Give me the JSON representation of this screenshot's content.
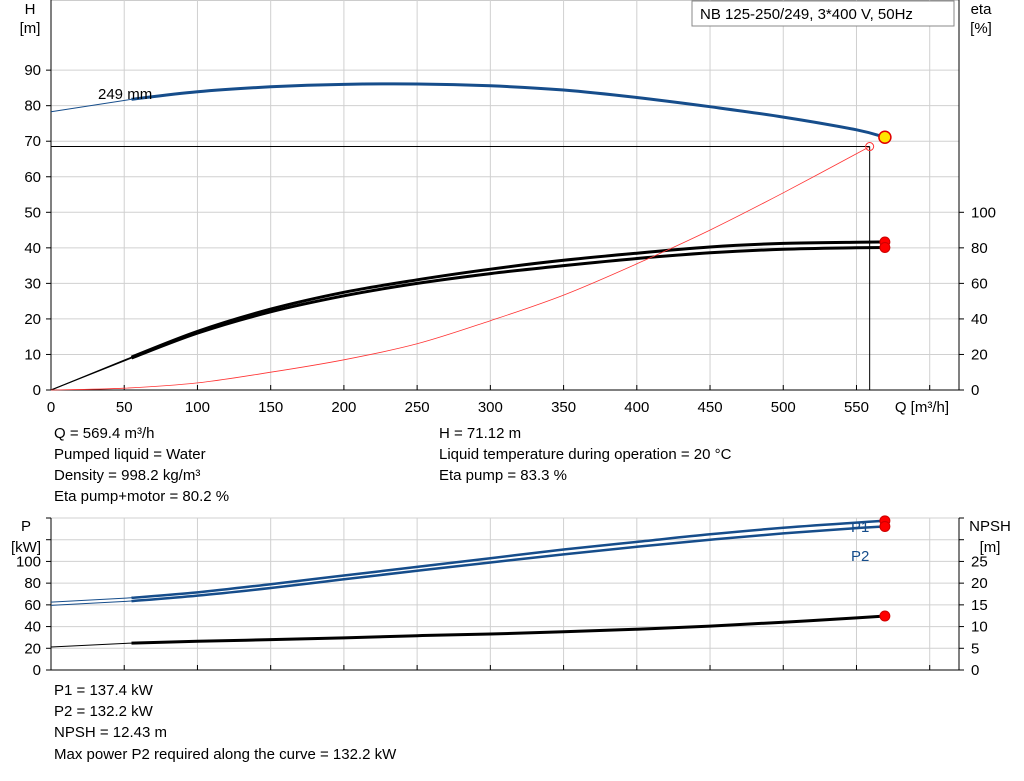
{
  "chart_data": [
    {
      "type": "line",
      "title": "NB 125-250/249, 3*400 V, 50Hz",
      "xlabel": "Q [m³/h]",
      "ylabel_left": [
        "H",
        "[m]"
      ],
      "ylabel_right": [
        "eta",
        "[%]"
      ],
      "xlim": [
        0,
        620
      ],
      "xticks": [
        0,
        50,
        100,
        150,
        200,
        250,
        300,
        350,
        400,
        450,
        500,
        550
      ],
      "ylim_left": [
        0,
        100
      ],
      "yticks_left": [
        0,
        10,
        20,
        30,
        40,
        50,
        60,
        70,
        80,
        90
      ],
      "ylim_right": [
        0,
        200
      ],
      "yticks_right": [
        0,
        20,
        40,
        60,
        80,
        100
      ],
      "grid": true,
      "annotations": [
        {
          "text": "249 mm",
          "x": 108,
          "y": 82
        }
      ],
      "series": [
        {
          "axis": "left",
          "role": "head",
          "color": "#164d8b",
          "extension_from": 0,
          "x": [
            55,
            100,
            150,
            200,
            250,
            300,
            350,
            400,
            450,
            500,
            550,
            569.4
          ],
          "y": [
            81.8,
            83.9,
            85.3,
            86.0,
            86.1,
            85.6,
            84.4,
            82.3,
            79.7,
            76.8,
            73.2,
            71.12
          ]
        },
        {
          "axis": "right",
          "role": "eta pump",
          "color": "#000000",
          "extension_from": 0,
          "x": [
            55,
            100,
            150,
            200,
            250,
            300,
            350,
            400,
            450,
            500,
            550,
            569.4
          ],
          "y": [
            18.5,
            33,
            45.5,
            55,
            62,
            68,
            73,
            77,
            80.5,
            82.5,
            83.2,
            83.3
          ]
        },
        {
          "axis": "right",
          "role": "eta pump+motor",
          "color": "#000000",
          "extension_from": 0,
          "x": [
            55,
            100,
            150,
            200,
            250,
            300,
            350,
            400,
            450,
            500,
            550,
            569.4
          ],
          "y": [
            18,
            32,
            44,
            53,
            60,
            65.5,
            70,
            74,
            77.2,
            79.2,
            80,
            80.2
          ]
        },
        {
          "axis": "left",
          "role": "system curve",
          "color": "#ff3333",
          "x": [
            0,
            50,
            100,
            150,
            200,
            250,
            300,
            350,
            400,
            450,
            500,
            559
          ],
          "y": [
            0,
            0.5,
            2.0,
            5.0,
            8.5,
            13.0,
            19.5,
            26.7,
            35.5,
            45.0,
            55.5,
            68.5
          ]
        }
      ],
      "operating_point": {
        "x": 569.4,
        "y": 71.12
      },
      "system_point": {
        "x": 559,
        "y": 68.5
      },
      "eta_points": [
        83.3,
        80.2
      ]
    },
    {
      "type": "line",
      "ylabel_left": [
        "P",
        "[kW]"
      ],
      "ylabel_right": [
        "NPSH",
        "[m]"
      ],
      "xlim": [
        0,
        620
      ],
      "ylim_left": [
        0,
        140
      ],
      "yticks_left": [
        0,
        20,
        40,
        60,
        80,
        100
      ],
      "ylim_right": [
        0,
        35
      ],
      "yticks_right": [
        0,
        5,
        10,
        15,
        20,
        25
      ],
      "grid": true,
      "series": [
        {
          "name": "P1",
          "axis": "left",
          "color": "#164d8b",
          "extension_from": 0,
          "x": [
            55,
            100,
            150,
            200,
            250,
            300,
            350,
            400,
            450,
            500,
            550,
            569.4
          ],
          "y": [
            66.5,
            71.5,
            79,
            87,
            95,
            103,
            111,
            118,
            125,
            131,
            135.8,
            137.4
          ]
        },
        {
          "name": "P2",
          "axis": "left",
          "color": "#164d8b",
          "extension_from": 0,
          "x": [
            55,
            100,
            150,
            200,
            250,
            300,
            350,
            400,
            450,
            500,
            550,
            569.4
          ],
          "y": [
            63.5,
            68.5,
            75.5,
            83.5,
            91.5,
            99,
            106.5,
            113.5,
            120,
            125.8,
            130.7,
            132.2
          ]
        },
        {
          "name": "NPSH",
          "axis": "right",
          "color": "#000000",
          "extension_from": 0,
          "x": [
            55,
            100,
            150,
            200,
            250,
            300,
            350,
            400,
            450,
            500,
            550,
            569.4
          ],
          "y": [
            6.2,
            6.6,
            7.0,
            7.4,
            7.9,
            8.3,
            8.8,
            9.4,
            10.1,
            11.0,
            12.0,
            12.43
          ]
        }
      ],
      "end_values_left": [
        137.4,
        132.2
      ],
      "end_value_right": 12.43
    }
  ],
  "info": {
    "q": "Q = 569.4 m³/h",
    "liquid": "Pumped liquid = Water",
    "density": "Density = 998.2 kg/m³",
    "eta_pm": "Eta pump+motor = 80.2 %",
    "h": "H = 71.12 m",
    "temp": "Liquid temperature during operation = 20 °C",
    "eta_pump": "Eta pump = 83.3 %",
    "p1": "P1 = 137.4 kW",
    "p2": "P2 = 132.2 kW",
    "npsh": "NPSH = 12.43 m",
    "maxpower": "Max power P2 required along the curve = 132.2 kW"
  }
}
